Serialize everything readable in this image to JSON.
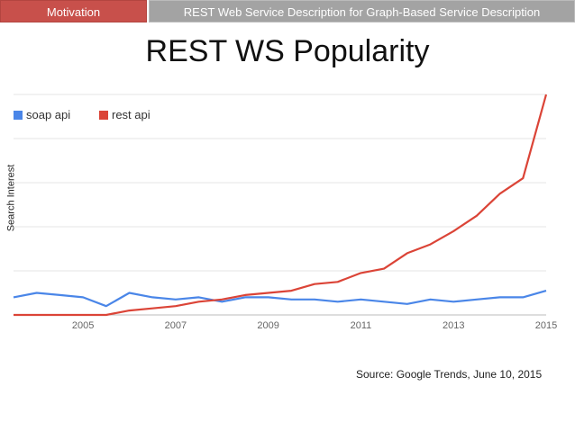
{
  "header": {
    "tab_active": "Motivation",
    "tab_inactive": "REST Web Service Description for Graph-Based Service Description"
  },
  "slide": {
    "title": "REST WS Popularity",
    "source": "Source: Google Trends, June 10, 2015"
  },
  "colors": {
    "soap": "#4a86e8",
    "rest": "#db4437",
    "tab_active": "#c8504b",
    "tab_inactive": "#a3a3a3"
  },
  "chart_data": {
    "type": "line",
    "title": "",
    "xlabel": "",
    "ylabel": "Search Interest",
    "xlim": [
      2004.0,
      2015.5
    ],
    "ylim": [
      0,
      100
    ],
    "grid": true,
    "legend": "top-left",
    "x_ticks": [
      "2005",
      "2007",
      "2009",
      "2011",
      "2013",
      "2015"
    ],
    "x": [
      2004.0,
      2004.5,
      2005.0,
      2005.5,
      2006.0,
      2006.5,
      2007.0,
      2007.5,
      2008.0,
      2008.5,
      2009.0,
      2009.5,
      2010.0,
      2010.5,
      2011.0,
      2011.5,
      2012.0,
      2012.5,
      2013.0,
      2013.5,
      2014.0,
      2014.5,
      2015.0,
      2015.5
    ],
    "series": [
      {
        "name": "soap api",
        "color": "#4a86e8",
        "values": [
          8,
          10,
          9,
          8,
          4,
          10,
          8,
          7,
          8,
          6,
          8,
          8,
          7,
          7,
          6,
          7,
          6,
          5,
          7,
          6,
          7,
          8,
          8,
          11
        ]
      },
      {
        "name": "rest api",
        "color": "#db4437",
        "values": [
          0,
          0,
          0,
          0,
          0,
          2,
          3,
          4,
          6,
          7,
          9,
          10,
          11,
          14,
          15,
          19,
          21,
          28,
          32,
          38,
          45,
          55,
          62,
          100
        ]
      }
    ]
  }
}
